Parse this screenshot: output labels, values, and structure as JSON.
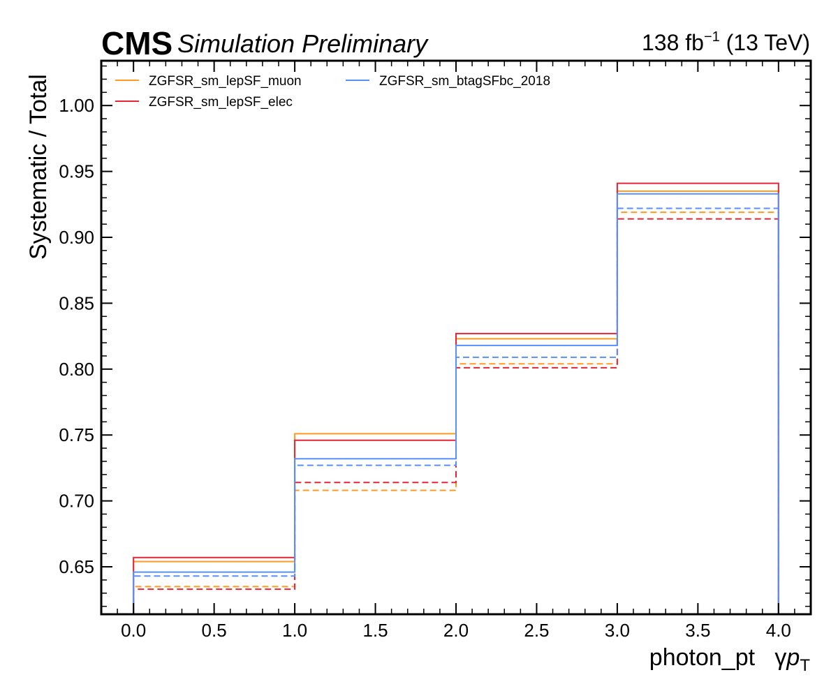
{
  "header": {
    "cms_label": "CMS",
    "cms_sublabel": "Simulation Preliminary",
    "lumi_value": "138 fb",
    "lumi_exponent": "−1",
    "lumi_energy": " (13 TeV)"
  },
  "chart_data": {
    "type": "line",
    "style": "step-histogram",
    "ylabel": "Systematic / Total",
    "xlabel": "photon_pt",
    "xlabel_extra_prefix": "γ",
    "xlabel_extra_var": "p",
    "xlabel_extra_sub": "T",
    "xlim": [
      -0.2,
      4.2
    ],
    "ylim": [
      0.614,
      1.034
    ],
    "x_ticks": [
      "0.0",
      "0.5",
      "1.0",
      "1.5",
      "2.0",
      "2.5",
      "3.0",
      "3.5",
      "4.0"
    ],
    "y_ticks": [
      "0.65",
      "0.70",
      "0.75",
      "0.80",
      "0.85",
      "0.90",
      "0.95",
      "1.00"
    ],
    "bin_edges": [
      0,
      1,
      2,
      3,
      4
    ],
    "legend_position": "top-left",
    "series": [
      {
        "name": "ZGFSR_sm_lepSF_muon",
        "color": "#ff9a1f",
        "up": [
          0.654,
          0.751,
          0.823,
          0.935
        ],
        "down": [
          0.635,
          0.708,
          0.804,
          0.919
        ]
      },
      {
        "name": "ZGFSR_sm_lepSF_elec",
        "color": "#e42536",
        "up": [
          0.657,
          0.746,
          0.827,
          0.941
        ],
        "down": [
          0.633,
          0.714,
          0.801,
          0.914
        ]
      },
      {
        "name": "ZGFSR_sm_btagSFbc_2018",
        "color": "#5790fc",
        "up": [
          0.646,
          0.732,
          0.818,
          0.933
        ],
        "down": [
          0.643,
          0.727,
          0.809,
          0.922
        ]
      }
    ]
  }
}
